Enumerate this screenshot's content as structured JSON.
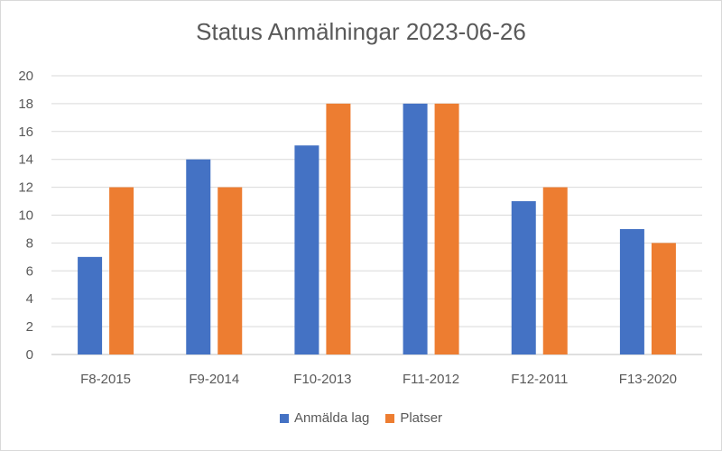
{
  "chart_data": {
    "type": "bar",
    "title": "Status Anmälningar 2023-06-26",
    "xlabel": "",
    "ylabel": "",
    "categories": [
      "F8-2015",
      "F9-2014",
      "F10-2013",
      "F11-2012",
      "F12-2011",
      "F13-2020"
    ],
    "series": [
      {
        "name": "Anmälda lag",
        "color": "#4472c4",
        "values": [
          7,
          14,
          15,
          18,
          11,
          9
        ]
      },
      {
        "name": "Platser",
        "color": "#ed7d31",
        "values": [
          12,
          12,
          18,
          18,
          12,
          8
        ]
      }
    ],
    "ylim": [
      0,
      20
    ],
    "yticks": [
      0,
      2,
      4,
      6,
      8,
      10,
      12,
      14,
      16,
      18,
      20
    ],
    "grid": true,
    "legend_position": "bottom"
  }
}
